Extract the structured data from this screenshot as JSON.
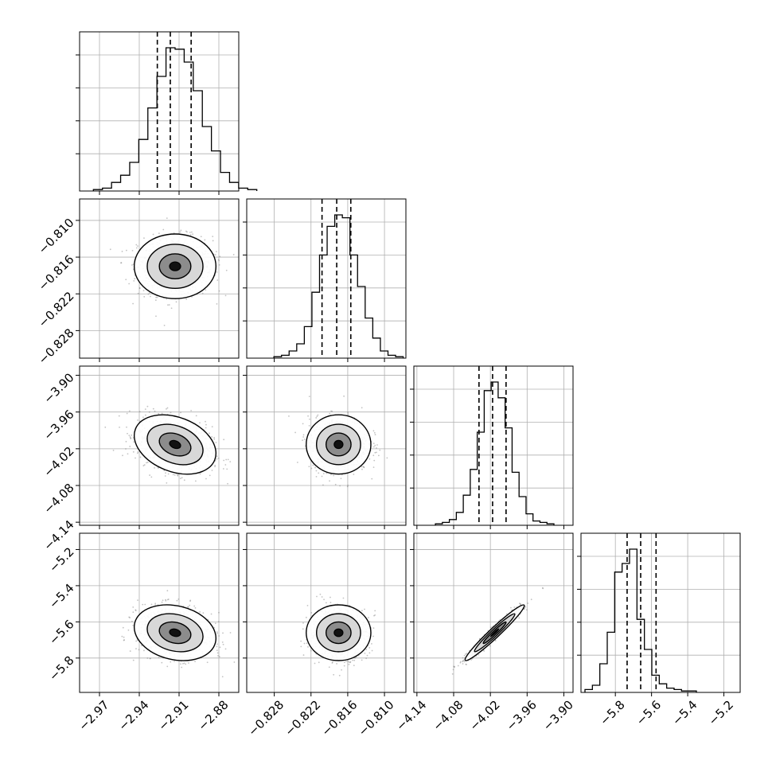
{
  "colors": {
    "frame": "#000000",
    "grid": "#b0b0b0",
    "points": "#7a7a7a",
    "background": "#ffffff"
  },
  "chart_data": {
    "type": "corner",
    "title": "",
    "grid": true,
    "parameters": [
      {
        "range": [
          -2.985,
          -2.865
        ],
        "ticks": [
          -2.97,
          -2.94,
          -2.91,
          -2.88
        ],
        "tick_labels": [
          "−2.97",
          "−2.94",
          "−2.91",
          "−2.88"
        ],
        "mean": -2.913,
        "sd": 0.014,
        "quantiles": [
          -2.9264,
          -2.9166,
          -2.9009
        ]
      },
      {
        "range": [
          -0.8325,
          -0.8065
        ],
        "ticks": [
          -0.828,
          -0.822,
          -0.816,
          -0.81
        ],
        "tick_labels": [
          "−0.828",
          "−0.822",
          "−0.816",
          "−0.810"
        ],
        "mean": -0.8175,
        "sd": 0.0024,
        "quantiles": [
          -0.8202,
          -0.8178,
          -0.8155
        ]
      },
      {
        "range": [
          -4.145,
          -3.885
        ],
        "ticks": [
          -4.14,
          -4.08,
          -4.02,
          -3.96,
          -3.9
        ],
        "tick_labels": [
          "−4.14",
          "−4.08",
          "−4.02",
          "−3.96",
          "−3.90"
        ],
        "mean": -4.013,
        "sd": 0.022,
        "quantiles": [
          -4.0386,
          -4.0164,
          -3.9944
        ]
      },
      {
        "range": [
          -5.99,
          -5.11
        ],
        "ticks": [
          -5.8,
          -5.6,
          -5.4,
          -5.2
        ],
        "tick_labels": [
          "−5.8",
          "−5.6",
          "−5.4",
          "−5.2"
        ],
        "mean": -5.66,
        "sd": 0.07,
        "quantiles": [
          -5.735,
          -5.66,
          -5.575
        ]
      }
    ],
    "correlations": {
      "0-1": 0.0,
      "0-2": -0.3,
      "0-3": -0.2,
      "1-2": 0.0,
      "1-3": 0.0,
      "2-3": 0.97
    },
    "histograms": [
      [
        0.01,
        0.02,
        0.06,
        0.11,
        0.2,
        0.36,
        0.58,
        0.8,
        1.0,
        0.99,
        0.9,
        0.7,
        0.45,
        0.28,
        0.13,
        0.06,
        0.02,
        0.01
      ],
      [
        0.01,
        0.02,
        0.05,
        0.1,
        0.22,
        0.46,
        0.72,
        0.92,
        1.0,
        0.98,
        0.72,
        0.5,
        0.28,
        0.14,
        0.05,
        0.02,
        0.01
      ],
      [
        0.01,
        0.02,
        0.04,
        0.09,
        0.21,
        0.39,
        0.65,
        0.94,
        1.0,
        0.89,
        0.68,
        0.37,
        0.2,
        0.08,
        0.03,
        0.02,
        0.01
      ],
      [
        0.02,
        0.05,
        0.2,
        0.42,
        0.84,
        0.9,
        1.0,
        0.51,
        0.3,
        0.12,
        0.06,
        0.03,
        0.02,
        0.01,
        0.01
      ]
    ]
  }
}
